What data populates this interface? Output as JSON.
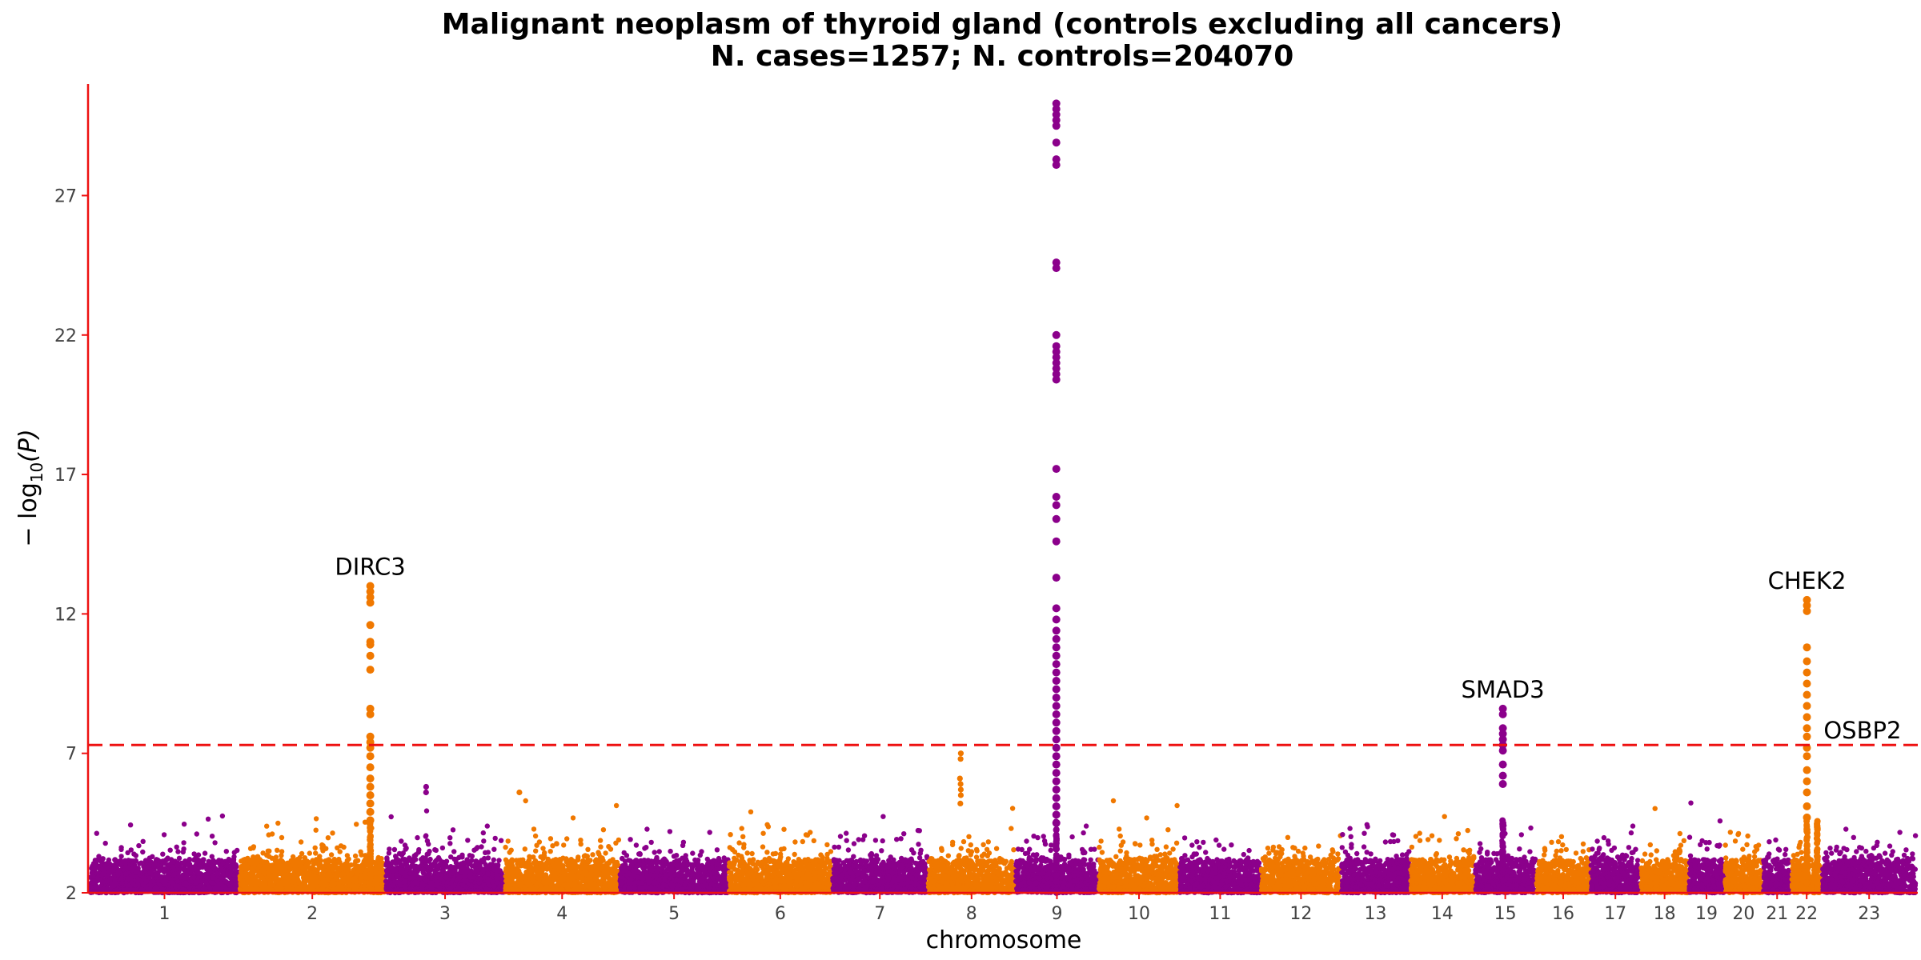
{
  "chart_data": {
    "type": "scatter",
    "title_line1": "Malignant neoplasm of thyroid gland (controls excluding all cancers)",
    "title_line2": "N. cases=1257; N. controls=204070",
    "xlabel": "chromosome",
    "ylabel_prefix": "− log",
    "ylabel_sub": "10",
    "ylabel_suffix": "(P)",
    "ylim": [
      2,
      31
    ],
    "yticks": [
      2,
      7,
      12,
      17,
      22,
      27
    ],
    "significance_threshold": 7.3,
    "grid": false,
    "colors": {
      "odd_chromosome": "#8b008b",
      "even_chromosome": "#f07800",
      "axis": "#ee1111",
      "threshold_line": "#ee1111"
    },
    "chromosomes": [
      {
        "label": "1",
        "start": 0,
        "end": 248,
        "max": 4.9
      },
      {
        "label": "2",
        "start": 248,
        "end": 490,
        "max": 4.7
      },
      {
        "label": "3",
        "start": 490,
        "end": 688,
        "max": 5.8
      },
      {
        "label": "4",
        "start": 688,
        "end": 878,
        "max": 5.6
      },
      {
        "label": "5",
        "start": 878,
        "end": 1059,
        "max": 5.9
      },
      {
        "label": "6",
        "start": 1059,
        "end": 1230,
        "max": 5.8
      },
      {
        "label": "7",
        "start": 1230,
        "end": 1389,
        "max": 4.9
      },
      {
        "label": "8",
        "start": 1389,
        "end": 1534,
        "max": 5.2
      },
      {
        "label": "9",
        "start": 1534,
        "end": 1672,
        "max": 4.8
      },
      {
        "label": "10",
        "start": 1672,
        "end": 1806,
        "max": 5.4
      },
      {
        "label": "11",
        "start": 1806,
        "end": 1941,
        "max": 5.6
      },
      {
        "label": "12",
        "start": 1941,
        "end": 2074,
        "max": 5.6
      },
      {
        "label": "13",
        "start": 2074,
        "end": 2188,
        "max": 5.6
      },
      {
        "label": "14",
        "start": 2188,
        "end": 2295,
        "max": 5.2
      },
      {
        "label": "15",
        "start": 2295,
        "end": 2397,
        "max": 5.0
      },
      {
        "label": "16",
        "start": 2397,
        "end": 2487,
        "max": 4.6
      },
      {
        "label": "17",
        "start": 2487,
        "end": 2570,
        "max": 5.0
      },
      {
        "label": "18",
        "start": 2570,
        "end": 2650,
        "max": 5.4
      },
      {
        "label": "19",
        "start": 2650,
        "end": 2709,
        "max": 5.3
      },
      {
        "label": "20",
        "start": 2709,
        "end": 2773,
        "max": 4.7
      },
      {
        "label": "21",
        "start": 2773,
        "end": 2820,
        "max": 3.9
      },
      {
        "label": "22",
        "start": 2820,
        "end": 2871,
        "max": 4.0
      },
      {
        "label": "23",
        "start": 2871,
        "end": 3027,
        "max": 4.6
      }
    ],
    "peaks": [
      {
        "gene": "DIRC3",
        "chromosome": "2",
        "pos": 465,
        "max": 13.0,
        "values": [
          13.0,
          12.8,
          12.6,
          12.4,
          11.6,
          11.0,
          10.9,
          10.5,
          10.0,
          8.6,
          8.4,
          7.6,
          7.4,
          7.2,
          6.9,
          6.5,
          6.1,
          5.8,
          5.5,
          5.2,
          4.9,
          4.6
        ]
      },
      {
        "gene": "",
        "chromosome": "9",
        "pos": 1602,
        "max": 30.3,
        "values": [
          30.3,
          30.1,
          29.9,
          29.7,
          29.5,
          28.9,
          28.3,
          28.1,
          24.6,
          24.4,
          22.0,
          21.6,
          21.4,
          21.2,
          21.0,
          20.8,
          20.6,
          20.4,
          17.2,
          16.2,
          15.9,
          15.4,
          14.6,
          13.3,
          12.2,
          11.8,
          11.4,
          11.1,
          10.8,
          10.5,
          10.2,
          9.9,
          9.6,
          9.3,
          9.0,
          8.7,
          8.4,
          8.1,
          7.8,
          7.5,
          7.2,
          6.9,
          6.6,
          6.3,
          6.0,
          5.7,
          5.4,
          5.1,
          4.8,
          4.5
        ]
      },
      {
        "gene": "SMAD3",
        "chromosome": "15",
        "pos": 2342,
        "max": 8.6,
        "values": [
          8.6,
          8.4,
          7.9,
          7.7,
          7.5,
          7.3,
          7.1,
          6.6,
          6.2,
          5.9
        ]
      },
      {
        "gene": "CHEK2",
        "chromosome": "22",
        "pos": 2846,
        "max": 12.5,
        "values": [
          12.5,
          12.3,
          12.1,
          10.8,
          10.3,
          9.9,
          9.5,
          9.1,
          8.7,
          8.3,
          7.9,
          7.6,
          7.2,
          6.9,
          6.4,
          6.0,
          5.6,
          5.1,
          4.7
        ]
      },
      {
        "gene": "OSBP2",
        "chromosome": "22",
        "pos": 2863,
        "max": 7.6,
        "values": []
      }
    ],
    "minor_points": [
      {
        "chromosome": "8",
        "pos": 1443,
        "values": [
          7.0,
          6.8,
          6.1,
          5.9,
          5.7,
          5.5,
          5.2
        ]
      },
      {
        "chromosome": "4",
        "pos": 712,
        "values": [
          5.6
        ]
      },
      {
        "chromosome": "3",
        "pos": 558,
        "values": [
          5.8,
          5.6
        ]
      }
    ]
  }
}
